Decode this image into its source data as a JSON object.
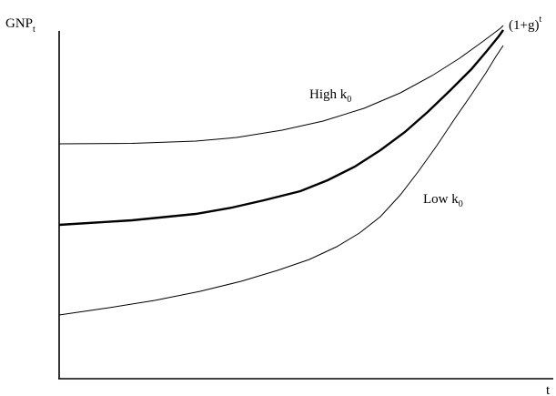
{
  "y_axis_label": {
    "main": "GNP",
    "subscript": "t"
  },
  "x_axis_label": "t",
  "curves": {
    "high": {
      "label_main": "High k",
      "label_subscript": "0"
    },
    "trend": {
      "label_main": "(1+g)",
      "label_superscript": "t"
    },
    "low": {
      "label_main": "Low k",
      "label_subscript": "0"
    }
  }
}
